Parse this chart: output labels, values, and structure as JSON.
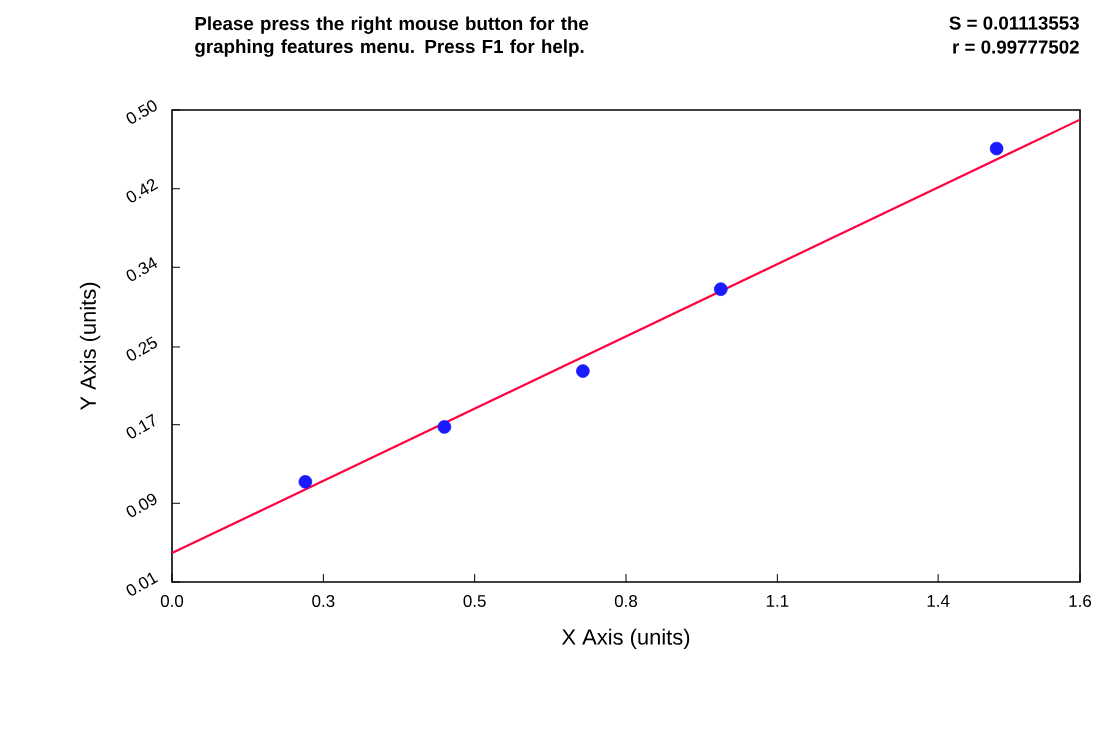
{
  "chart_data": {
    "type": "scatter",
    "xlabel": "X Axis (units)",
    "ylabel": "Y Axis (units)",
    "annotations": [
      "Please press the right mouse button for the graphing features menu.  Press F1 for help.",
      "S = 0.01113553",
      "r = 0.99777502"
    ],
    "xlim": [
      0,
      1.6
    ],
    "ylim": [
      0.01,
      0.5
    ],
    "xticks": [
      {
        "value": 0,
        "label": "0.0"
      },
      {
        "value": 0.2667,
        "label": "0.3"
      },
      {
        "value": 0.5333,
        "label": "0.5"
      },
      {
        "value": 0.8,
        "label": "0.8"
      },
      {
        "value": 1.0667,
        "label": "1.1"
      },
      {
        "value": 1.35,
        "label": "1.4"
      },
      {
        "value": 1.6,
        "label": "1.6"
      }
    ],
    "yticks": [
      {
        "value": 0.01,
        "label": "0.01"
      },
      {
        "value": 0.0917,
        "label": "0.09"
      },
      {
        "value": 0.1733,
        "label": "0.17"
      },
      {
        "value": 0.254,
        "label": "0.25"
      },
      {
        "value": 0.3367,
        "label": "0.34"
      },
      {
        "value": 0.4183,
        "label": "0.42"
      },
      {
        "value": 0.5,
        "label": "0.50"
      }
    ],
    "grid": false,
    "marker": "circle",
    "series": [
      {
        "color": "#1a1aff",
        "x": [
          0.235,
          0.48,
          0.724,
          0.967,
          1.453
        ],
        "values": [
          0.114,
          0.171,
          0.229,
          0.314,
          0.46
        ]
      },
      {
        "type": "line",
        "color": "#ff0040",
        "line_style": "solid",
        "marker": "none",
        "x": [
          0,
          1.6
        ],
        "values": [
          0.04,
          0.49
        ]
      }
    ]
  }
}
